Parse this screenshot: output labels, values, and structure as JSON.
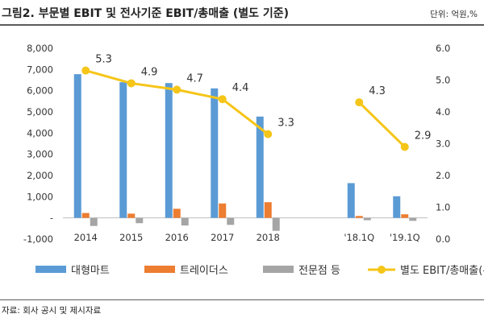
{
  "header": {
    "title": "그림2. 부문별 EBIT 및 전사기준 EBIT/총매출 (별도 기준)",
    "unit": "단위: 억원,%"
  },
  "footer": {
    "source": "자료: 회사 공시 및 제시자료"
  },
  "colors": {
    "mart": "#5b9bd5",
    "traders": "#ed7d31",
    "specialty": "#a5a5a5",
    "ratio": "#f5c518"
  },
  "chart_data": {
    "type": "bar",
    "categories": [
      "2014",
      "2015",
      "2016",
      "2017",
      "2018",
      "",
      "'18.1Q",
      "'19.1Q"
    ],
    "series": [
      {
        "name": "대형마트",
        "type": "bar",
        "axis": "left",
        "values": [
          6780,
          6400,
          6360,
          6110,
          4780,
          null,
          1640,
          1020
        ]
      },
      {
        "name": "트레이더스",
        "type": "bar",
        "axis": "left",
        "values": [
          230,
          200,
          430,
          680,
          740,
          null,
          90,
          170
        ]
      },
      {
        "name": "전문점 등",
        "type": "bar",
        "axis": "left",
        "values": [
          -380,
          -250,
          -360,
          -330,
          -610,
          null,
          -110,
          -140
        ]
      },
      {
        "name": "별도 EBIT/총매출(우)",
        "type": "line",
        "axis": "right",
        "values": [
          5.3,
          4.9,
          4.7,
          4.4,
          3.3,
          null,
          4.3,
          2.9
        ],
        "labels": [
          "5.3",
          "4.9",
          "4.7",
          "4.4",
          "3.3",
          "",
          "4.3",
          "2.9"
        ]
      }
    ],
    "y_left": {
      "min": -1000,
      "max": 8000,
      "step": 1000,
      "tick_labels": [
        "-1,000",
        "-",
        "1,000",
        "2,000",
        "3,000",
        "4,000",
        "5,000",
        "6,000",
        "7,000",
        "8,000"
      ]
    },
    "y_right": {
      "min": 0,
      "max": 6,
      "step": 1,
      "tick_labels": [
        "0.0",
        "1.0",
        "2.0",
        "3.0",
        "4.0",
        "5.0",
        "6.0"
      ]
    },
    "legend": [
      "대형마트",
      "트레이더스",
      "전문점 등",
      "별도 EBIT/총매출(우)"
    ],
    "legend_position": "bottom",
    "grid": false
  }
}
